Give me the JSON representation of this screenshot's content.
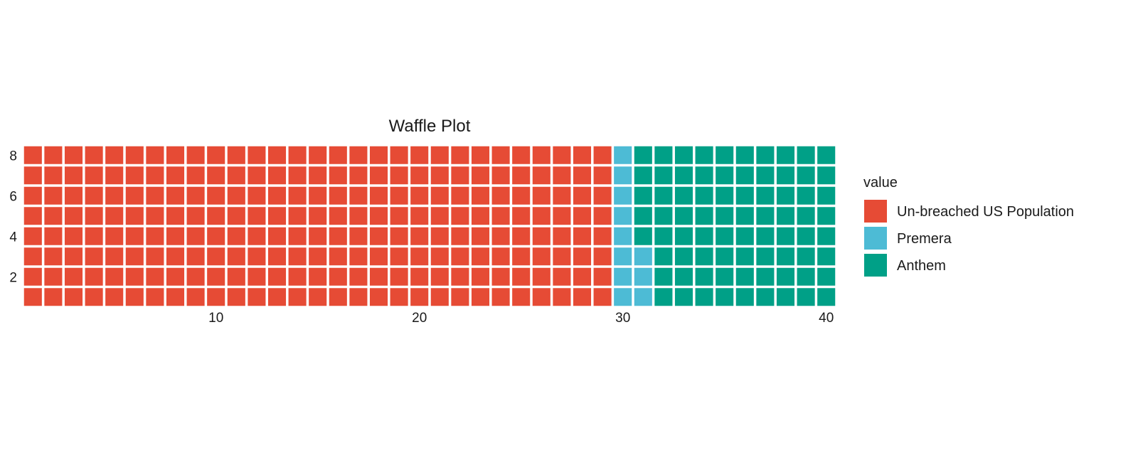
{
  "chart_data": {
    "type": "waffle",
    "title": "Waffle Plot",
    "columns": 40,
    "rows": 8,
    "fill_order": "column-major, bottom-to-top, left-to-right",
    "series": [
      {
        "name": "Un-breached US Population",
        "count": 232,
        "color": "#E64B35"
      },
      {
        "name": "Premera",
        "count": 11,
        "color": "#4DBBD5"
      },
      {
        "name": "Anthem",
        "count": 77,
        "color": "#00A087"
      }
    ],
    "x_ticks": [
      "10",
      "20",
      "30",
      "40"
    ],
    "y_ticks": [
      "2",
      "4",
      "6",
      "8"
    ],
    "xlim": [
      1,
      40
    ],
    "ylim": [
      1,
      8
    ],
    "grid": false,
    "legend": {
      "title": "value",
      "position": "right"
    }
  }
}
